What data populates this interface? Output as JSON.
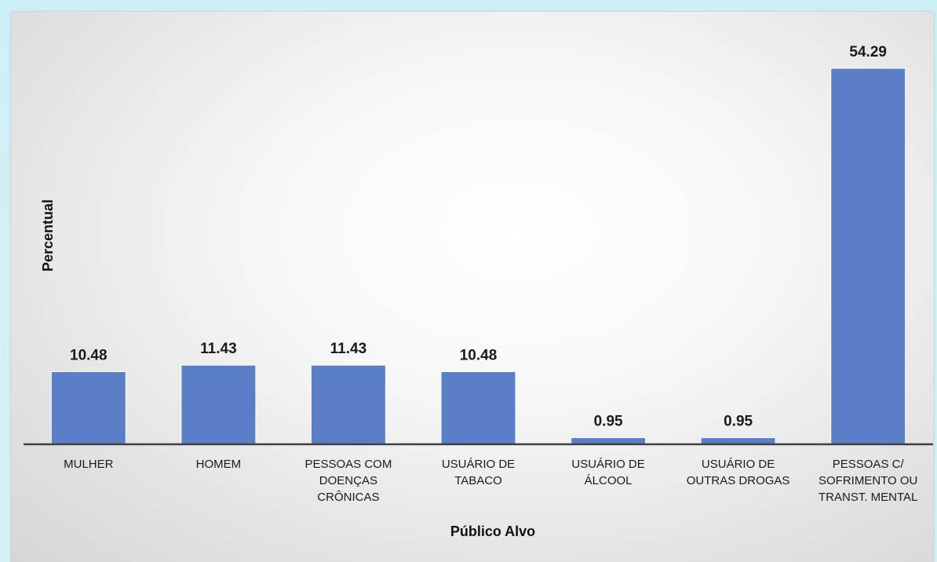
{
  "chart_data": {
    "type": "bar",
    "title": "",
    "xlabel": "Público Alvo",
    "ylabel": "Percentual",
    "categories": [
      [
        "MULHER"
      ],
      [
        "HOMEM"
      ],
      [
        "PESSOAS COM",
        "DOENÇAS",
        "CRÔNICAS"
      ],
      [
        "USUÁRIO DE",
        "TABACO"
      ],
      [
        "USUÁRIO DE",
        "ÁLCOOL"
      ],
      [
        "USUÁRIO DE",
        "OUTRAS DROGAS"
      ],
      [
        "PESSOAS C/",
        "SOFRIMENTO OU",
        "TRANST. MENTAL"
      ]
    ],
    "values": [
      10.48,
      11.43,
      11.43,
      10.48,
      0.95,
      0.95,
      54.29
    ],
    "value_labels": [
      "10.48",
      "11.43",
      "11.43",
      "10.48",
      "0.95",
      "0.95",
      "54.29"
    ],
    "ylim": [
      0,
      60
    ],
    "grid": false,
    "legend": "none",
    "bar_color": "#5b7fc7",
    "axis_color": "#404040"
  }
}
